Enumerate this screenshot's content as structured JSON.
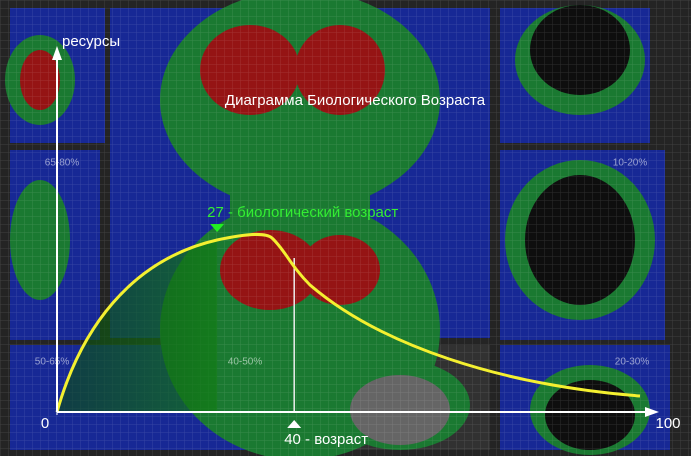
{
  "chart_data": {
    "type": "age-diagram",
    "title": "Диаграмма Биологического Возраста",
    "y_label": "ресурсы",
    "xlim": [
      0,
      100
    ],
    "xticks": [
      0,
      100
    ],
    "biological_age": {
      "value": 27,
      "label": "27 - биологический возраст"
    },
    "age": {
      "value": 40,
      "label": "40 - возраст"
    },
    "background_labels": [
      "65-80%",
      "10-20%",
      "50-65%",
      "40-50%",
      "20-30%"
    ]
  }
}
